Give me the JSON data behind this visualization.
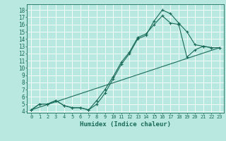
{
  "xlabel": "Humidex (Indice chaleur)",
  "bg_color": "#b8e8e0",
  "grid_color": "#ffffff",
  "line_color": "#1a6b5a",
  "xlim": [
    -0.5,
    23.5
  ],
  "ylim": [
    3.8,
    18.8
  ],
  "xticks": [
    0,
    1,
    2,
    3,
    4,
    5,
    6,
    7,
    8,
    9,
    10,
    11,
    12,
    13,
    14,
    15,
    16,
    17,
    18,
    19,
    20,
    21,
    22,
    23
  ],
  "yticks": [
    4,
    5,
    6,
    7,
    8,
    9,
    10,
    11,
    12,
    13,
    14,
    15,
    16,
    17,
    18
  ],
  "line1_x": [
    0,
    1,
    2,
    3,
    4,
    5,
    6,
    7,
    8,
    9,
    10,
    11,
    12,
    13,
    14,
    15,
    16,
    17,
    18,
    19,
    20,
    21,
    22,
    23
  ],
  "line1_y": [
    4.2,
    5.0,
    5.0,
    5.5,
    4.8,
    4.5,
    4.5,
    4.2,
    5.0,
    6.5,
    8.5,
    10.5,
    12.0,
    14.0,
    14.5,
    16.5,
    18.0,
    17.5,
    16.2,
    15.0,
    13.2,
    13.0,
    12.8,
    12.8
  ],
  "line2_x": [
    0,
    1,
    2,
    3,
    4,
    5,
    6,
    7,
    8,
    9,
    10,
    11,
    12,
    13,
    14,
    15,
    16,
    17,
    18,
    19,
    20,
    21,
    22,
    23
  ],
  "line2_y": [
    4.2,
    5.0,
    5.0,
    5.5,
    4.8,
    4.5,
    4.5,
    4.2,
    5.5,
    7.0,
    8.8,
    10.8,
    12.2,
    14.2,
    14.7,
    16.0,
    17.2,
    16.2,
    16.0,
    11.5,
    12.5,
    13.0,
    12.8,
    12.8
  ],
  "line3_x": [
    0,
    23
  ],
  "line3_y": [
    4.2,
    12.8
  ]
}
